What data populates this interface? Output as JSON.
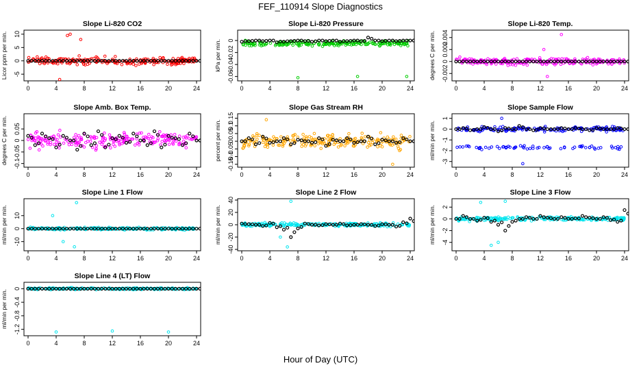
{
  "figure": {
    "title": "FEF_110914  Slope Diagnostics",
    "xlabel": "Hour of Day (UTC)"
  },
  "chart_data": [
    {
      "type": "scatter",
      "title": "Slope Li-820 CO2",
      "ylabel": "Licor ppm per min.",
      "xlim": [
        0,
        24
      ],
      "ylim": [
        -7,
        11
      ],
      "xticks": [
        0,
        4,
        8,
        12,
        16,
        20,
        24
      ],
      "yticks": [
        -5,
        0,
        5,
        10
      ],
      "series": [
        {
          "name": "raw",
          "color": "#ff0000",
          "spread": 2.2,
          "center": 0,
          "outliers": [
            [
              5.6,
              9.5
            ],
            [
              6,
              10
            ],
            [
              4.5,
              -7
            ],
            [
              7.5,
              8
            ]
          ]
        },
        {
          "name": "hourly",
          "color": "#000000",
          "values": [
            0,
            0,
            0,
            0,
            0,
            0,
            0,
            0,
            0,
            0,
            0,
            0,
            0,
            0,
            0,
            0,
            0,
            0,
            0,
            0,
            0,
            0,
            0,
            0,
            0
          ]
        }
      ]
    },
    {
      "type": "scatter",
      "title": "Slope Li-820 Pressure",
      "ylabel": "kPa per min.",
      "xlim": [
        0,
        24
      ],
      "ylim": [
        -0.065,
        0.015
      ],
      "xticks": [
        0,
        4,
        8,
        12,
        16,
        20,
        24
      ],
      "yticks": [
        -0.06,
        -0.04,
        -0.02,
        0
      ],
      "series": [
        {
          "name": "raw",
          "color": "#00cc00",
          "spread": 0.006,
          "center": -0.005,
          "outliers": [
            [
              8,
              -0.062
            ],
            [
              16.5,
              -0.06
            ],
            [
              23.5,
              -0.06
            ]
          ]
        },
        {
          "name": "hourly",
          "color": "#000000",
          "values": [
            -0.002,
            -0.001,
            0,
            -0.001,
            0,
            -0.003,
            -0.002,
            -0.001,
            0,
            -0.001,
            -0.002,
            0,
            -0.001,
            0,
            -0.002,
            -0.001,
            0,
            -0.001,
            0.005,
            0,
            -0.001,
            0,
            -0.001,
            0,
            0
          ]
        }
      ]
    },
    {
      "type": "scatter",
      "title": "Slope Li-820 Temp.",
      "ylabel": "degrees C per min.",
      "xlim": [
        0,
        24
      ],
      "ylim": [
        -0.003,
        0.005
      ],
      "xticks": [
        0,
        4,
        8,
        12,
        16,
        20,
        24
      ],
      "yticks": [
        -0.002,
        0,
        0.002,
        0.004
      ],
      "series": [
        {
          "name": "raw",
          "color": "#ff00ff",
          "spread": 0.0008,
          "center": 0,
          "outliers": [
            [
              15,
              0.0045
            ],
            [
              13,
              -0.0025
            ],
            [
              12.5,
              0.002
            ]
          ]
        },
        {
          "name": "hourly",
          "color": "#000000",
          "values": [
            0,
            0,
            0,
            0,
            0,
            0,
            0,
            0,
            0,
            0,
            0,
            0,
            0,
            0,
            0,
            0,
            0,
            0,
            0,
            0,
            0,
            0,
            0,
            0,
            0
          ]
        }
      ]
    },
    {
      "type": "scatter",
      "title": "Slope Amb. Box Temp.",
      "ylabel": "degrees C per min.",
      "xlim": [
        0,
        24
      ],
      "ylim": [
        -0.11,
        0.11
      ],
      "xticks": [
        0,
        4,
        8,
        12,
        16,
        20,
        24
      ],
      "yticks": [
        -0.1,
        -0.05,
        0,
        0.05
      ],
      "series": [
        {
          "name": "raw",
          "color": "#ff00ff",
          "spread": 0.05,
          "center": 0,
          "outliers": []
        },
        {
          "name": "hourly",
          "color": "#000000",
          "values": [
            0.02,
            -0.02,
            0.03,
            0.01,
            -0.03,
            0.02,
            0,
            -0.04,
            0.03,
            -0.02,
            0.04,
            -0.03,
            0.01,
            0.02,
            -0.01,
            0.03,
            0,
            -0.02,
            0.04,
            -0.03,
            0.02,
            0.01,
            -0.02,
            0.03,
            0
          ]
        }
      ]
    },
    {
      "type": "scatter",
      "title": "Slope Gas Stream RH",
      "ylabel": "percent per min.",
      "xlim": [
        0,
        24
      ],
      "ylim": [
        -0.16,
        0.17
      ],
      "xticks": [
        0,
        4,
        8,
        12,
        16,
        20,
        24
      ],
      "yticks": [
        -0.15,
        -0.1,
        -0.05,
        0,
        0.05,
        0.1,
        0.15
      ],
      "series": [
        {
          "name": "raw",
          "color": "#ffa500",
          "spread": 0.07,
          "center": 0,
          "outliers": [
            [
              21.5,
              -0.15
            ],
            [
              3.5,
              0.14
            ]
          ]
        },
        {
          "name": "hourly",
          "color": "#000000",
          "values": [
            0,
            0.02,
            -0.02,
            0.03,
            -0.01,
            0,
            0.02,
            -0.02,
            0.01,
            0,
            -0.01,
            0.02,
            -0.03,
            0.01,
            0,
            0.02,
            -0.01,
            0,
            0.03,
            -0.02,
            0.01,
            0,
            -0.01,
            0.02,
            0
          ]
        }
      ]
    },
    {
      "type": "scatter",
      "title": "Slope Sample Flow",
      "ylabel": "ml/min per min.",
      "xlim": [
        0,
        24
      ],
      "ylim": [
        -3.4,
        1.3
      ],
      "xticks": [
        0,
        4,
        8,
        12,
        16,
        20,
        24
      ],
      "yticks": [
        -3,
        -2,
        -1,
        0,
        1
      ],
      "series": [
        {
          "name": "raw",
          "color": "#0000ff",
          "spread": 0.35,
          "center": 0,
          "outliers": [
            [
              9.5,
              -3.2
            ],
            [
              6.5,
              1
            ]
          ],
          "second_band": -1.7
        },
        {
          "name": "hourly",
          "color": "#000000",
          "values": [
            0,
            0.1,
            -0.1,
            0,
            0.2,
            0,
            -0.2,
            0.1,
            0,
            0.3,
            0,
            -0.1,
            0.1,
            0,
            0,
            0.1,
            0,
            0.1,
            0,
            -0.1,
            0.1,
            0,
            0,
            0.1,
            0
          ]
        }
      ]
    },
    {
      "type": "scatter",
      "title": "Slope Line 1 Flow",
      "ylabel": "ml/min per min.",
      "xlim": [
        0,
        24
      ],
      "ylim": [
        -16,
        22
      ],
      "xticks": [
        0,
        4,
        8,
        12,
        16,
        20,
        24
      ],
      "yticks": [
        -10,
        0,
        10
      ],
      "series": [
        {
          "name": "raw",
          "color": "#00e5ee",
          "spread": 1.5,
          "center": 0,
          "outliers": [
            [
              6.9,
              20
            ],
            [
              6.6,
              -14
            ],
            [
              3.5,
              10
            ],
            [
              5,
              -10
            ]
          ]
        },
        {
          "name": "hourly",
          "color": "#000000",
          "values": [
            0,
            0,
            0,
            0,
            0,
            0,
            0,
            0,
            0,
            0,
            0,
            0,
            0,
            0,
            0,
            0,
            0,
            0,
            0,
            0,
            0,
            0,
            0,
            0,
            0
          ]
        }
      ]
    },
    {
      "type": "scatter",
      "title": "Slope Line 2 Flow",
      "ylabel": "ml/min per min.",
      "xlim": [
        0,
        24
      ],
      "ylim": [
        -40,
        40
      ],
      "xticks": [
        0,
        4,
        8,
        12,
        16,
        20,
        24
      ],
      "yticks": [
        -40,
        -20,
        0,
        20,
        40
      ],
      "series": [
        {
          "name": "raw",
          "color": "#00e5ee",
          "spread": 4,
          "center": 0,
          "outliers": [
            [
              7,
              38
            ],
            [
              6.5,
              -36
            ],
            [
              5.5,
              -20
            ]
          ]
        },
        {
          "name": "hourly",
          "color": "#000000",
          "values": [
            2,
            1,
            0,
            -2,
            3,
            -4,
            -8,
            -20,
            -6,
            2,
            0,
            -1,
            1,
            0,
            2,
            -1,
            0,
            1,
            0,
            -2,
            1,
            0,
            -3,
            4,
            10
          ]
        }
      ]
    },
    {
      "type": "scatter",
      "title": "Slope Line 3 Flow",
      "ylabel": "ml/min per min.",
      "xlim": [
        0,
        24
      ],
      "ylim": [
        -5.2,
        3.2
      ],
      "xticks": [
        0,
        4,
        8,
        12,
        16,
        20,
        24
      ],
      "yticks": [
        -4,
        -2,
        0,
        2
      ],
      "series": [
        {
          "name": "raw",
          "color": "#00e5ee",
          "spread": 0.5,
          "center": 0,
          "outliers": [
            [
              3.5,
              2.8
            ],
            [
              7,
              3
            ],
            [
              5,
              -4.5
            ],
            [
              6,
              -4
            ]
          ]
        },
        {
          "name": "hourly",
          "color": "#000000",
          "values": [
            0,
            0.5,
            0,
            -0.3,
            0.2,
            -0.5,
            -1,
            -2,
            -0.5,
            0,
            0.3,
            0,
            0.5,
            0.2,
            0,
            0.3,
            0,
            0.1,
            0.5,
            0.2,
            0,
            0.3,
            -0.2,
            -0.5,
            1.5
          ]
        }
      ]
    },
    {
      "type": "scatter",
      "title": "Slope Line 4 (LT) Flow",
      "ylabel": "ml/min per min.",
      "xlim": [
        0,
        24
      ],
      "ylim": [
        -1.35,
        0.15
      ],
      "xticks": [
        0,
        4,
        8,
        12,
        16,
        20,
        24
      ],
      "yticks": [
        -1.2,
        -0.8,
        -0.4,
        0
      ],
      "series": [
        {
          "name": "raw",
          "color": "#00e5ee",
          "spread": 0.04,
          "center": 0,
          "outliers": [
            [
              4,
              -1.28
            ],
            [
              12,
              -1.25
            ],
            [
              20,
              -1.28
            ]
          ]
        },
        {
          "name": "hourly",
          "color": "#000000",
          "values": [
            0,
            0,
            0,
            0,
            0,
            0,
            0,
            0,
            0,
            0,
            0,
            0,
            0,
            0,
            0,
            0,
            0,
            0,
            0,
            0,
            0,
            0,
            0,
            0,
            0
          ]
        }
      ]
    }
  ]
}
